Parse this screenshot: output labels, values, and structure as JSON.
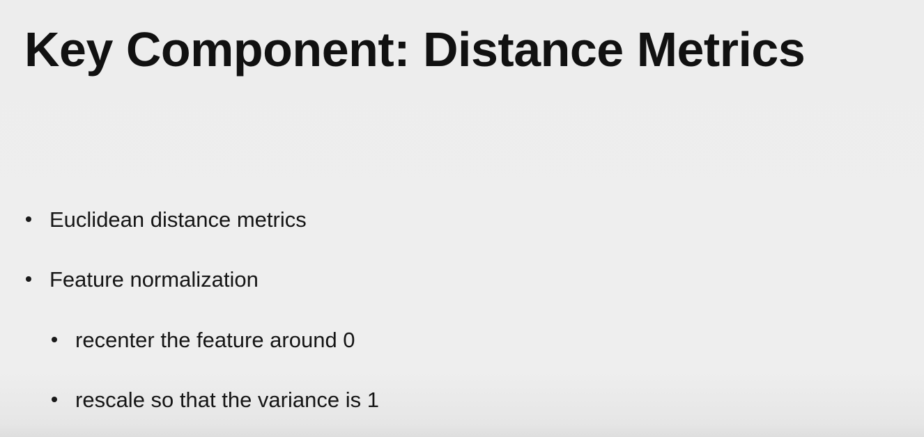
{
  "slide": {
    "title": "Key Component: Distance Metrics",
    "bullets": [
      {
        "text": "Euclidean distance metrics",
        "level": 1
      },
      {
        "text": "Feature normalization",
        "level": 1
      },
      {
        "text": "recenter the feature around 0",
        "level": 2
      },
      {
        "text": "rescale so that the variance is 1",
        "level": 2
      }
    ]
  }
}
